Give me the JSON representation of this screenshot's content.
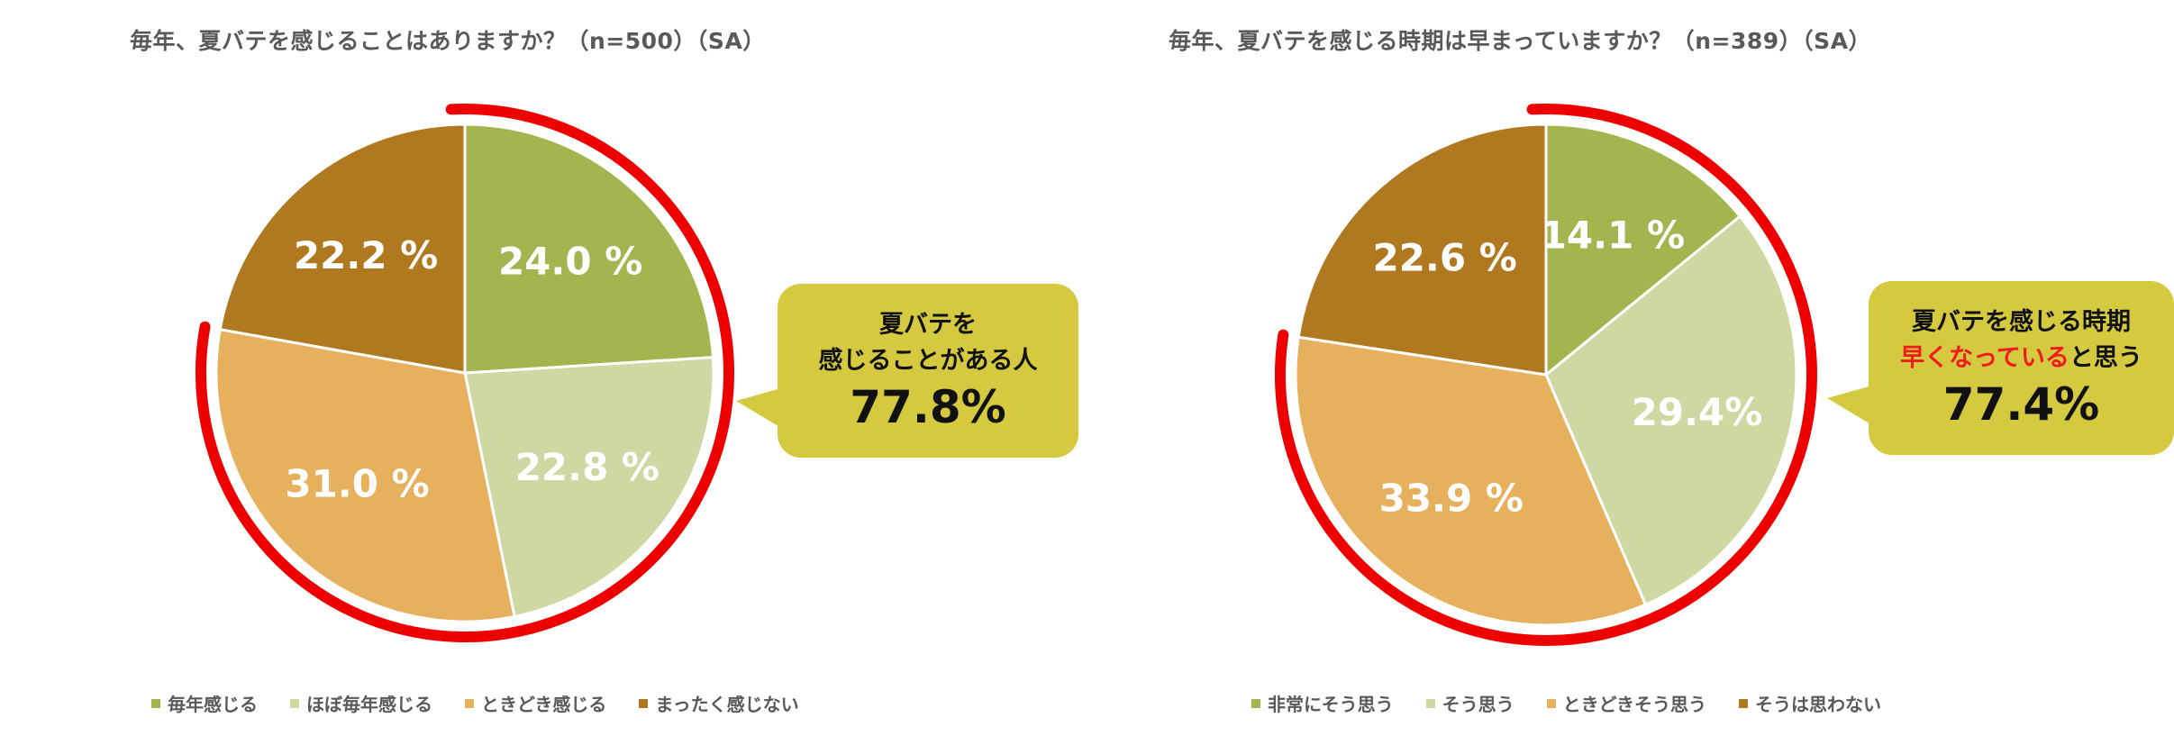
{
  "colors": {
    "c1": "#a3b54f",
    "c2": "#cfd8a2",
    "c3": "#e6b05c",
    "c4": "#b0781f",
    "arc": "#ee0000",
    "callout": "#d4c93f"
  },
  "chart_data": [
    {
      "type": "pie",
      "title": "毎年、夏バテを感じることはありますか？（n=500）（SA）",
      "categories": [
        "毎年感じる",
        "ほぼ毎年感じる",
        "ときどき感じる",
        "まったく感じない"
      ],
      "values": [
        24.0,
        22.8,
        31.0,
        22.2
      ],
      "data_labels": [
        "24.0 %",
        "22.8 %",
        "31.0 %",
        "22.2 %"
      ],
      "legend": "bottom",
      "highlight": {
        "line1": "夏バテを",
        "line2": "感じることがある人",
        "value": "77.8%",
        "covers_share": 77.8
      }
    },
    {
      "type": "pie",
      "title": "毎年、夏バテを感じる時期は早まっていますか？（n=389）（SA）",
      "categories": [
        "非常にそう思う",
        "そう思う",
        "ときどきそう思う",
        "そうは思わない"
      ],
      "values": [
        14.1,
        29.4,
        33.9,
        22.6
      ],
      "data_labels": [
        "14.1 %",
        "29.4%",
        "33.9 %",
        "22.6 %"
      ],
      "legend": "bottom",
      "highlight": {
        "line1": "夏バテを感じる時期",
        "line2_red": "早くなっている",
        "line2_rest": "と思う",
        "value": "77.4%",
        "covers_share": 77.4
      }
    }
  ]
}
